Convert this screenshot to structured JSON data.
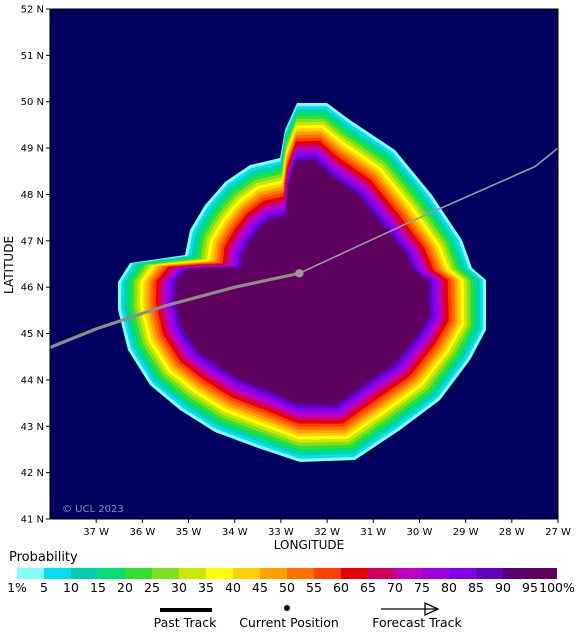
{
  "map": {
    "lat_labels": [
      "41 N",
      "42 N",
      "43 N",
      "44 N",
      "45 N",
      "46 N",
      "47 N",
      "48 N",
      "49 N",
      "50 N",
      "51 N",
      "52 N"
    ],
    "lon_labels": [
      "37 W",
      "36 W",
      "35 W",
      "34 W",
      "33 W",
      "32 W",
      "31 W",
      "30 W",
      "29 W",
      "28 W",
      "27 W"
    ],
    "ylabel": "LATITUDE",
    "xlabel": "LONGITUDE",
    "copyright": "© UCL 2023",
    "background_color": "#00005f",
    "current_position": {
      "lon_w": 32.6,
      "lat_n": 46.3
    },
    "track_points": [
      {
        "lon_w": 38.0,
        "lat_n": 44.7
      },
      {
        "lon_w": 37.0,
        "lat_n": 45.1
      },
      {
        "lon_w": 35.5,
        "lat_n": 45.6
      },
      {
        "lon_w": 34.0,
        "lat_n": 46.0
      },
      {
        "lon_w": 32.6,
        "lat_n": 46.3
      },
      {
        "lon_w": 30.0,
        "lat_n": 47.5
      },
      {
        "lon_w": 27.5,
        "lat_n": 48.6
      },
      {
        "lon_w": 27.0,
        "lat_n": 49.0
      }
    ]
  },
  "legend": {
    "title": "Probability",
    "levels": [
      "1%",
      "5",
      "10",
      "15",
      "20",
      "25",
      "30",
      "35",
      "40",
      "45",
      "50",
      "55",
      "60",
      "65",
      "70",
      "75",
      "80",
      "85",
      "90",
      "95",
      "100%"
    ],
    "colors": [
      "#80ffff",
      "#00e0f0",
      "#00d0b0",
      "#00e070",
      "#30e030",
      "#80e020",
      "#c8e800",
      "#ffff00",
      "#ffd000",
      "#ffa000",
      "#ff7000",
      "#ff4000",
      "#e80000",
      "#d00060",
      "#c000c0",
      "#a000e0",
      "#8000f0",
      "#6000c0",
      "#5a0070",
      "#5f005f"
    ],
    "past_track_label": "Past Track",
    "current_position_label": "Current Position",
    "forecast_track_label": "Forecast Track"
  }
}
